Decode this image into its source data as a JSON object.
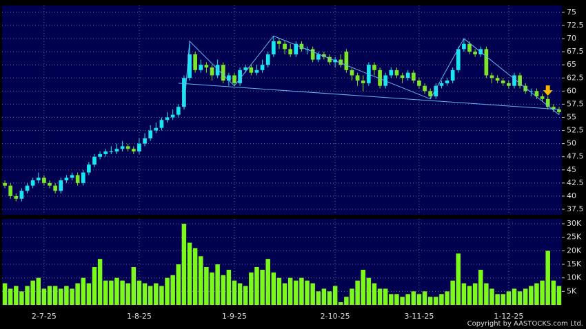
{
  "chart_data": {
    "type": "candlestick",
    "categories": [
      null,
      null,
      null,
      null,
      null,
      null,
      null,
      "2-7-25",
      null,
      null,
      null,
      null,
      null,
      null,
      null,
      null,
      null,
      null,
      null,
      null,
      null,
      null,
      null,
      null,
      "1-8-25",
      null,
      null,
      null,
      null,
      null,
      null,
      null,
      null,
      null,
      null,
      null,
      null,
      null,
      null,
      null,
      null,
      "1-9-25",
      null,
      null,
      null,
      null,
      null,
      null,
      null,
      null,
      null,
      null,
      null,
      null,
      null,
      null,
      null,
      null,
      null,
      "2-10-25",
      null,
      null,
      null,
      null,
      null,
      null,
      null,
      null,
      null,
      null,
      null,
      null,
      null,
      null,
      "3-11-25",
      null,
      null,
      null,
      null,
      null,
      null,
      null,
      null,
      null,
      null,
      null,
      null,
      null,
      null,
      null,
      "1-12-25",
      null,
      null,
      null,
      null,
      null,
      null,
      null,
      null,
      null
    ],
    "open": [
      42.5,
      42,
      40,
      39.5,
      41,
      42,
      43,
      43.5,
      42.5,
      42,
      41,
      43,
      43.5,
      44,
      42.5,
      44.5,
      46,
      47.5,
      48,
      48.5,
      48.5,
      49,
      49.5,
      49,
      48.5,
      50,
      51,
      52.5,
      53,
      54.5,
      55,
      55.5,
      57,
      62.5,
      67,
      64,
      65,
      64.5,
      63,
      65,
      62,
      63,
      61.5,
      64,
      64.5,
      63.5,
      64,
      65,
      67,
      69.5,
      69,
      68,
      67,
      69,
      68,
      68,
      66,
      67,
      66.5,
      65.5,
      66,
      67.5,
      64,
      63,
      62,
      61.5,
      65,
      64,
      61,
      63,
      64,
      63,
      62.5,
      63.5,
      62,
      61,
      60,
      59,
      61,
      61.5,
      62,
      64,
      68,
      69,
      67.5,
      67,
      68,
      63,
      62.5,
      62,
      61.5,
      61,
      63,
      61,
      60,
      60,
      59,
      58.5,
      57,
      56.5
    ],
    "high": [
      43,
      42.5,
      40.5,
      41.5,
      42.5,
      43.5,
      44.5,
      44,
      43,
      42.5,
      43.5,
      44,
      44.5,
      44.5,
      45,
      46.5,
      48,
      48.5,
      49,
      49.5,
      50,
      50.5,
      50,
      49.5,
      51,
      52,
      53.5,
      54,
      55,
      56,
      56.5,
      57.5,
      63,
      69,
      67.5,
      66,
      65.5,
      65,
      66,
      65.5,
      63.5,
      63.5,
      64.5,
      65,
      65,
      65,
      66,
      67.5,
      70.5,
      70,
      69.5,
      69,
      69.5,
      69.5,
      68.5,
      68.5,
      67.5,
      67.5,
      67,
      66.5,
      67,
      68,
      64.5,
      63.5,
      63,
      65.5,
      65.5,
      64.5,
      63.5,
      64.5,
      64.5,
      63.5,
      64,
      64,
      62.5,
      61.5,
      60.5,
      61.5,
      62,
      62.5,
      64.5,
      68.5,
      70,
      69.5,
      68,
      68.5,
      68.5,
      63.5,
      63,
      62.5,
      62,
      63.5,
      63.5,
      61.5,
      60.5,
      60.5,
      59.5,
      59,
      57.5,
      57
    ],
    "low": [
      41.5,
      39.5,
      39,
      39,
      40.5,
      41.5,
      42.5,
      42,
      41.5,
      40.5,
      40.5,
      42.5,
      43,
      42,
      42,
      44,
      45.5,
      47,
      47.5,
      48,
      48,
      48.5,
      48.5,
      48,
      48,
      49.5,
      50.5,
      52,
      52.5,
      54,
      54.5,
      55,
      56.5,
      62,
      63.5,
      63.5,
      63.5,
      62,
      62.5,
      61.5,
      61,
      61,
      61,
      63.5,
      63,
      63,
      63.5,
      64.5,
      66.5,
      68,
      67,
      66.5,
      66.5,
      67.5,
      67,
      65.5,
      65.5,
      66,
      65,
      64.5,
      64.5,
      63.5,
      62,
      61,
      60,
      61,
      63,
      60.5,
      60.5,
      62.5,
      62.5,
      61.5,
      62,
      61.5,
      60.5,
      59.5,
      58.5,
      58.5,
      60.5,
      61,
      61.5,
      63.5,
      67.5,
      67,
      66.5,
      66.5,
      62.5,
      61.5,
      61.5,
      61,
      60.5,
      60.5,
      60.5,
      59.5,
      59,
      58.5,
      58,
      56.5,
      56,
      55.5
    ],
    "close": [
      42,
      40,
      39.5,
      41,
      42,
      43,
      43.5,
      42.5,
      42,
      41,
      43,
      43.5,
      44,
      42.5,
      44.5,
      46,
      47.5,
      48,
      48.5,
      48.5,
      49,
      49.5,
      49,
      48.5,
      50,
      51,
      52.5,
      53,
      54.5,
      55,
      55.5,
      57,
      62.5,
      67,
      64,
      65,
      64.5,
      63,
      65,
      62,
      63,
      61.5,
      64,
      64.5,
      63.5,
      64,
      65,
      67,
      69.5,
      69,
      68,
      67,
      69,
      68,
      68,
      66,
      67,
      66.5,
      65.5,
      66,
      65,
      64,
      63,
      62,
      61.5,
      65,
      64,
      61,
      63,
      64,
      63,
      62.5,
      63.5,
      62,
      61,
      60,
      59,
      61,
      61.5,
      62,
      64,
      68,
      69,
      67.5,
      67,
      68,
      63,
      62.5,
      62,
      61.5,
      61,
      63,
      61,
      60,
      60,
      59,
      58.5,
      57,
      56.5,
      56
    ],
    "up_color": "#19e6f0",
    "down_color": "#7ee62a",
    "ylim": [
      36.45,
      76.3
    ],
    "yticks": [
      37.5,
      40,
      42.5,
      45,
      47.5,
      50,
      52.5,
      55,
      57.5,
      60,
      62.5,
      65,
      67.5,
      70,
      72.5,
      75
    ],
    "grid": true,
    "trendlines": [
      {
        "color": "#5fb8f0",
        "points": [
          [
            31,
            61.5
          ],
          [
            99,
            56.5
          ]
        ]
      },
      {
        "color": "#5fb8f0",
        "points": [
          [
            32,
            56.5
          ],
          [
            33,
            69.5
          ],
          [
            41,
            61
          ],
          [
            48,
            70.5
          ],
          [
            76,
            58.5
          ],
          [
            82,
            70
          ],
          [
            99,
            55.5
          ]
        ]
      }
    ],
    "arrow": {
      "index": 97,
      "price": 59.5,
      "color": "#f5b800"
    },
    "volume": {
      "color": "#7cf81c",
      "values": [
        8000,
        6000,
        7000,
        5000,
        7000,
        9000,
        10000,
        6000,
        7000,
        7000,
        6000,
        7000,
        6000,
        8000,
        10000,
        8000,
        14000,
        17000,
        9000,
        9000,
        10000,
        9000,
        8000,
        14000,
        9000,
        8000,
        7000,
        8000,
        7000,
        10000,
        11000,
        15000,
        30000,
        23000,
        21000,
        18000,
        14000,
        12000,
        15000,
        11000,
        13000,
        9000,
        8000,
        7000,
        12000,
        14000,
        13000,
        17000,
        12000,
        10000,
        8000,
        10000,
        9000,
        10000,
        9000,
        8000,
        5000,
        6000,
        5000,
        7000,
        1000,
        3000,
        6000,
        9000,
        13000,
        10000,
        8000,
        6000,
        6000,
        4000,
        4000,
        3000,
        4000,
        5000,
        4000,
        5000,
        3000,
        3000,
        4000,
        5000,
        9000,
        19000,
        8000,
        7000,
        8000,
        13000,
        8000,
        6000,
        4000,
        4000,
        5000,
        6000,
        5000,
        6000,
        7000,
        8000,
        9000,
        20000,
        9000,
        7000
      ],
      "ylim": [
        0,
        31800
      ],
      "yticks": [
        {
          "value": 5000,
          "label": "5K"
        },
        {
          "value": 10000,
          "label": "10K"
        },
        {
          "value": 15000,
          "label": "15K"
        },
        {
          "value": 20000,
          "label": "20K"
        },
        {
          "value": 25000,
          "label": "25K"
        },
        {
          "value": 30000,
          "label": "30K"
        }
      ]
    }
  },
  "copyright": "Copyright by AASTOCKS.com Ltd."
}
